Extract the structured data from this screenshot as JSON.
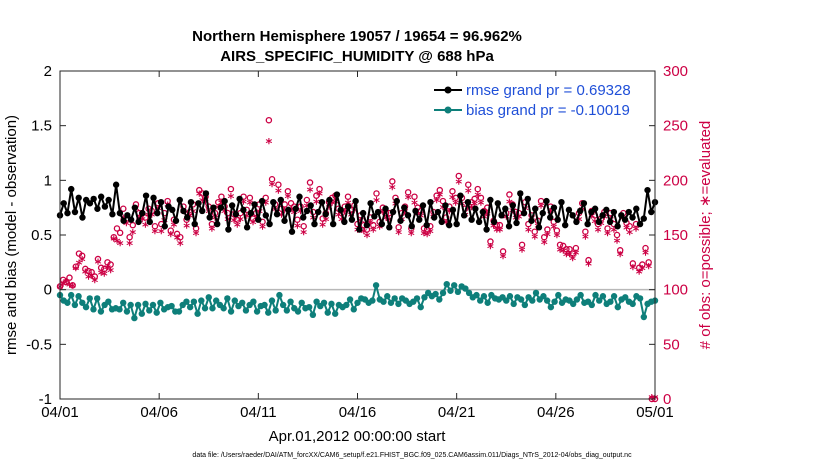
{
  "chart_data": {
    "type": "line",
    "title": "Northern Hemisphere 19057 / 19654 = 96.962%",
    "subtitle": "AIRS_SPECIFIC_HUMIDITY @ 688 hPa",
    "ylabel": "rmse and bias (model - observation)",
    "ylabel_right": "# of obs: o=possible; ∗=evaluated",
    "xlabel": "Apr.01,2012 00:00:00 start",
    "footnote": "data file: /Users/raeder/DAI/ATM_forcXX/CAM6_setup/f.e21.FHIST_BGC.f09_025.CAM6assim.011/Diags_NTrS_2012-04/obs_diag_output.nc",
    "xlim": [
      0,
      30
    ],
    "ylim": [
      -1,
      2
    ],
    "ylim_right": [
      0,
      300
    ],
    "x_ticks": [
      0,
      5,
      10,
      15,
      20,
      25,
      30
    ],
    "x_tick_labels": [
      "04/01",
      "04/06",
      "04/11",
      "04/16",
      "04/21",
      "04/26",
      "05/01"
    ],
    "y_ticks": [
      -1,
      -0.5,
      0,
      0.5,
      1,
      1.5,
      2
    ],
    "y_tick_labels": [
      "-1",
      "-0.5",
      "0",
      "0.5",
      "1",
      "1.5",
      "2"
    ],
    "y_right_ticks": [
      0,
      50,
      100,
      150,
      200,
      250,
      300
    ],
    "y_right_tick_labels": [
      "0",
      "50",
      "100",
      "150",
      "200",
      "250",
      "300"
    ],
    "series": [
      {
        "name": "rmse",
        "legend": "rmse grand pr = 0.69328",
        "color": "#000000",
        "values": [
          0.68,
          0.79,
          0.7,
          0.92,
          0.71,
          0.84,
          0.66,
          0.82,
          0.79,
          0.83,
          0.74,
          0.85,
          0.76,
          0.82,
          0.69,
          0.96,
          0.7,
          0.63,
          0.68,
          0.64,
          0.75,
          0.62,
          0.7,
          0.86,
          0.62,
          0.84,
          0.7,
          0.8,
          0.58,
          0.76,
          0.73,
          0.63,
          0.82,
          0.72,
          0.66,
          0.8,
          0.6,
          0.79,
          0.72,
          0.88,
          0.66,
          0.75,
          0.6,
          0.75,
          0.81,
          0.55,
          0.77,
          0.69,
          0.83,
          0.73,
          0.57,
          0.7,
          0.78,
          0.64,
          0.81,
          0.68,
          0.6,
          0.8,
          0.69,
          0.82,
          0.63,
          0.73,
          0.53,
          0.74,
          0.85,
          0.66,
          0.72,
          0.77,
          0.6,
          0.71,
          0.8,
          0.69,
          0.82,
          0.6,
          0.87,
          0.73,
          0.62,
          0.76,
          0.64,
          0.81,
          0.55,
          0.7,
          0.59,
          0.79,
          0.67,
          0.71,
          0.6,
          0.74,
          0.57,
          0.71,
          0.81,
          0.63,
          0.75,
          0.68,
          0.58,
          0.72,
          0.64,
          0.77,
          0.59,
          0.8,
          0.66,
          0.71,
          0.62,
          0.77,
          0.59,
          0.73,
          0.6,
          0.86,
          0.68,
          0.8,
          0.64,
          0.74,
          0.62,
          0.71,
          0.55,
          0.82,
          0.62,
          0.79,
          0.68,
          0.74,
          0.58,
          0.77,
          0.61,
          0.88,
          0.7,
          0.83,
          0.63,
          0.74,
          0.57,
          0.7,
          0.81,
          0.66,
          0.75,
          0.64,
          0.8,
          0.59,
          0.73,
          0.68,
          0.62,
          0.72,
          0.79,
          0.6,
          0.71,
          0.74,
          0.62,
          0.68,
          0.73,
          0.62,
          0.71,
          0.58,
          0.68,
          0.64,
          0.71,
          0.66,
          0.74,
          0.6,
          0.65,
          0.91,
          0.71,
          0.8
        ]
      },
      {
        "name": "bias",
        "legend": "bias grand pr = -0.10019",
        "color": "#0e7f7a",
        "values": [
          -0.05,
          -0.1,
          -0.12,
          -0.05,
          -0.14,
          -0.06,
          -0.12,
          -0.16,
          -0.08,
          -0.18,
          -0.08,
          -0.2,
          -0.14,
          -0.11,
          -0.18,
          -0.17,
          -0.18,
          -0.12,
          -0.2,
          -0.14,
          -0.26,
          -0.14,
          -0.22,
          -0.13,
          -0.19,
          -0.14,
          -0.21,
          -0.12,
          -0.18,
          -0.16,
          -0.15,
          -0.2,
          -0.2,
          -0.14,
          -0.11,
          -0.16,
          -0.11,
          -0.22,
          -0.1,
          -0.17,
          -0.07,
          -0.17,
          -0.1,
          -0.14,
          -0.17,
          -0.08,
          -0.2,
          -0.1,
          -0.15,
          -0.12,
          -0.19,
          -0.14,
          -0.11,
          -0.2,
          -0.15,
          -0.14,
          -0.21,
          -0.1,
          -0.19,
          -0.05,
          -0.14,
          -0.19,
          -0.11,
          -0.17,
          -0.2,
          -0.12,
          -0.17,
          -0.16,
          -0.23,
          -0.11,
          -0.15,
          -0.12,
          -0.21,
          -0.13,
          -0.22,
          -0.14,
          -0.16,
          -0.14,
          -0.09,
          -0.18,
          -0.12,
          -0.08,
          -0.09,
          -0.12,
          -0.1,
          0.04,
          -0.09,
          -0.11,
          -0.06,
          -0.12,
          -0.08,
          -0.13,
          -0.08,
          -0.1,
          -0.13,
          -0.11,
          -0.08,
          -0.16,
          -0.07,
          -0.03,
          -0.06,
          -0.04,
          -0.09,
          -0.03,
          0.05,
          -0.01,
          0.04,
          -0.02,
          0.03,
          0.01,
          -0.03,
          -0.07,
          -0.05,
          -0.1,
          -0.06,
          -0.12,
          -0.05,
          -0.08,
          -0.09,
          -0.07,
          -0.1,
          -0.06,
          -0.13,
          -0.07,
          -0.09,
          -0.14,
          -0.07,
          -0.1,
          -0.03,
          -0.09,
          -0.06,
          -0.1,
          -0.16,
          -0.11,
          -0.05,
          -0.12,
          -0.09,
          -0.1,
          -0.13,
          -0.09,
          -0.05,
          -0.12,
          -0.11,
          -0.14,
          -0.05,
          -0.1,
          -0.06,
          -0.13,
          -0.11,
          -0.06,
          -0.16,
          -0.09,
          -0.07,
          -0.11,
          -0.13,
          -0.06,
          -0.08,
          -0.25,
          -0.13,
          -0.11,
          -0.1
        ]
      },
      {
        "name": "possible",
        "legend": "",
        "color": "#cc0044",
        "values": [
          103,
          109,
          107,
          111,
          104,
          121,
          133,
          131,
          119,
          117,
          116,
          112,
          128,
          120,
          119,
          125,
          123,
          148,
          156,
          152,
          174,
          165,
          148,
          159,
          178,
          170,
          170,
          166,
          174,
          172,
          158,
          179,
          160,
          170,
          181,
          154,
          164,
          151,
          148,
          176,
          164,
          171,
          178,
          156,
          191,
          188,
          185,
          176,
          160,
          170,
          180,
          185,
          176,
          170,
          192,
          169,
          164,
          170,
          185,
          173,
          184,
          165,
          170,
          178,
          162,
          184,
          255,
          201,
          178,
          196,
          174,
          178,
          190,
          179,
          176,
          164,
          176,
          158,
          182,
          198,
          171,
          186,
          192,
          165,
          170,
          180,
          184,
          186,
          174,
          170,
          176,
          185,
          173,
          177,
          160,
          168,
          159,
          155,
          166,
          159,
          188,
          162,
          175,
          170,
          170,
          199,
          184,
          157,
          170,
          176,
          189,
          156,
          185,
          175,
          172,
          156,
          155,
          158,
          171,
          186,
          191,
          181,
          166,
          176,
          190,
          184,
          204,
          184,
          174,
          196,
          180,
          183,
          192,
          184,
          172,
          175,
          144,
          163,
          159,
          159,
          135,
          170,
          187,
          178,
          171,
          170,
          141,
          180,
          160,
          168,
          153,
          163,
          181,
          148,
          155,
          176,
          162,
          154,
          141,
          140,
          137,
          137,
          133,
          138,
          170,
          179,
          153,
          127,
          172,
          168,
          160,
          165,
          171,
          156,
          170,
          160,
          150,
          136,
          170,
          161,
          158,
          124,
          160,
          120,
          123,
          138,
          125,
          0,
          0
        ]
      },
      {
        "name": "evaluated",
        "legend": "",
        "color": "#cc0044",
        "values": [
          101,
          104,
          106,
          103,
          102,
          118,
          123,
          126,
          115,
          110,
          111,
          107,
          124,
          114,
          113,
          119,
          116,
          145,
          143,
          141,
          164,
          159,
          141,
          151,
          173,
          164,
          163,
          158,
          167,
          167,
          152,
          173,
          152,
          162,
          176,
          149,
          158,
          146,
          141,
          170,
          157,
          166,
          170,
          150,
          186,
          180,
          179,
          170,
          154,
          164,
          174,
          178,
          170,
          163,
          184,
          162,
          158,
          163,
          179,
          166,
          178,
          160,
          164,
          170,
          156,
          178,
          234,
          195,
          172,
          189,
          167,
          171,
          184,
          172,
          169,
          157,
          170,
          151,
          175,
          190,
          164,
          179,
          186,
          158,
          163,
          174,
          178,
          179,
          167,
          163,
          170,
          178,
          167,
          171,
          153,
          162,
          152,
          148,
          160,
          153,
          180,
          156,
          169,
          164,
          163,
          192,
          177,
          151,
          163,
          170,
          183,
          150,
          178,
          168,
          166,
          150,
          149,
          152,
          165,
          180,
          185,
          174,
          160,
          170,
          183,
          178,
          197,
          177,
          167,
          189,
          174,
          177,
          185,
          178,
          165,
          168,
          138,
          157,
          153,
          153,
          129,
          165,
          179,
          171,
          164,
          165,
          135,
          173,
          153,
          162,
          147,
          157,
          175,
          142,
          149,
          170,
          156,
          148,
          135,
          134,
          131,
          131,
          127,
          132,
          163,
          172,
          147,
          122,
          166,
          161,
          153,
          159,
          165,
          150,
          163,
          153,
          143,
          131,
          164,
          155,
          151,
          119,
          154,
          115,
          118,
          132,
          120,
          0,
          0
        ]
      }
    ]
  }
}
